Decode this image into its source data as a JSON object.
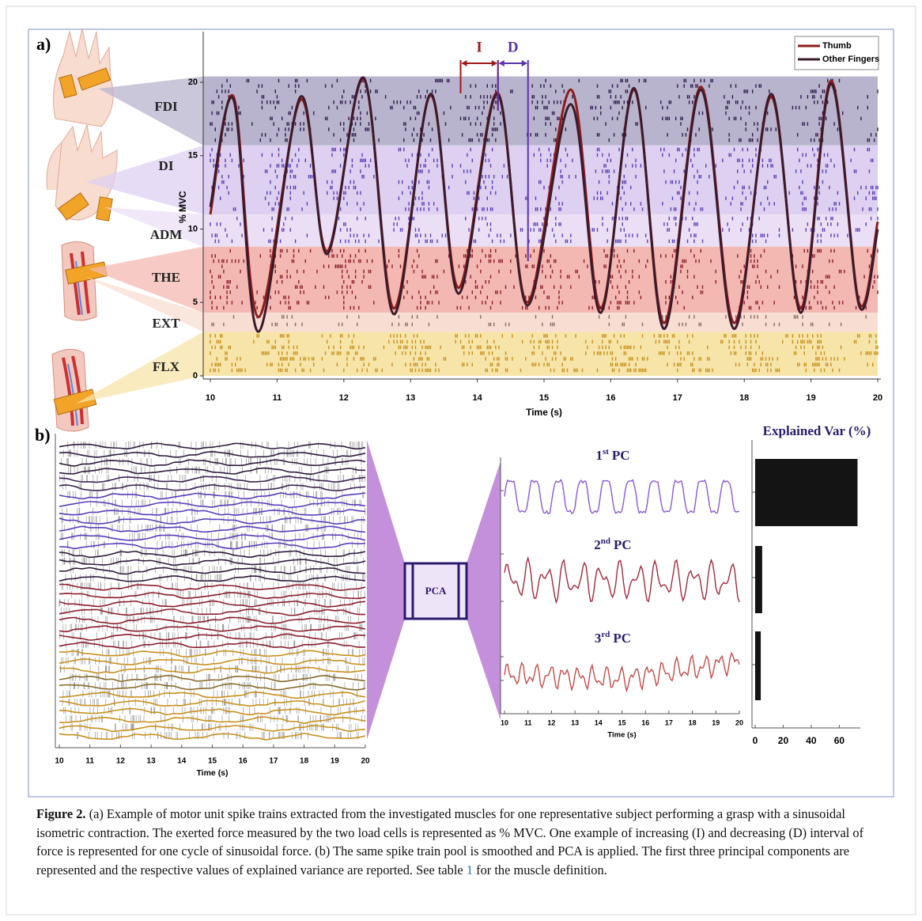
{
  "chart_data": [
    {
      "type": "line",
      "panel": "a)",
      "ylabel": "% MVC",
      "xlabel": "Time (s)",
      "xlim": [
        10,
        20
      ],
      "xticks": [
        10,
        11,
        12,
        13,
        14,
        15,
        16,
        17,
        18,
        19,
        20
      ],
      "ylim": [
        0,
        23.45
      ],
      "yticks": [
        0,
        5,
        10,
        15,
        20
      ],
      "bands": [
        {
          "name": "FDI",
          "color": "#b9b4cd",
          "range": [
            15.7,
            20.4
          ]
        },
        {
          "name": "DI",
          "color": "#ddd0f1",
          "range": [
            11,
            15.7
          ]
        },
        {
          "name": "ADM",
          "color": "#ebdff5",
          "range": [
            8.8,
            11
          ]
        },
        {
          "name": "THE",
          "color": "#f4b8b2",
          "range": [
            4.3,
            8.8
          ]
        },
        {
          "name": "EXT",
          "color": "#f8ddd2",
          "range": [
            3,
            4.3
          ]
        },
        {
          "name": "FLX",
          "color": "#f7e4a8",
          "range": [
            0,
            3
          ]
        }
      ],
      "annotations": [
        {
          "text": "I",
          "color": "#a01818",
          "range": [
            13.75,
            14.31
          ]
        },
        {
          "text": "D",
          "color": "#5a34a8",
          "range": [
            14.31,
            14.76
          ]
        }
      ],
      "x": [
        10,
        10.35,
        10.72,
        11.35,
        11.75,
        12.3,
        12.75,
        13.3,
        13.72,
        14.3,
        14.75,
        15.4,
        15.85,
        16.35,
        16.8,
        17.35,
        17.85,
        18.4,
        18.85,
        19.3,
        19.72,
        20
      ],
      "series": [
        {
          "name": "Thumb",
          "color": "#8e1c1c",
          "values": [
            11,
            19,
            4,
            18.8,
            8.5,
            20.2,
            4.6,
            19.1,
            6,
            19.3,
            5,
            19.5,
            4.6,
            19.5,
            3.6,
            19.7,
            3.6,
            19,
            4.6,
            20.1,
            5,
            10.5
          ]
        },
        {
          "name": "Other Fingers",
          "color": "#3b1b2b",
          "values": [
            11.5,
            18.8,
            3,
            19,
            8.3,
            20.3,
            4.2,
            19.2,
            5.6,
            19.2,
            4.8,
            18.5,
            4.3,
            19.6,
            3.2,
            19.5,
            3.2,
            19.2,
            4.3,
            19.9,
            4.8,
            10
          ]
        }
      ]
    },
    {
      "type": "raster",
      "panel": "b)",
      "xlabel": "Time (s)",
      "xlim": [
        10,
        20
      ],
      "xticks": [
        10,
        11,
        12,
        13,
        14,
        15,
        16,
        17,
        18,
        19,
        20
      ]
    },
    {
      "type": "line",
      "center": "PCA",
      "xlabel": "Time (s)",
      "xlim": [
        10,
        20
      ],
      "xticks": [
        10,
        11,
        12,
        13,
        14,
        15,
        16,
        17,
        18,
        19,
        20
      ],
      "components": [
        {
          "num": "1",
          "ordinal": "st",
          "name": "PC",
          "color": "#8b5ad6"
        },
        {
          "num": "2",
          "ordinal": "nd",
          "name": "PC",
          "color": "#a22a3c"
        },
        {
          "num": "3",
          "ordinal": "rd",
          "name": "PC",
          "color": "#c44b4b"
        }
      ]
    },
    {
      "type": "bar",
      "orientation": "horizontal",
      "title": "Explained Var (%)",
      "categories": [
        null,
        null,
        null
      ],
      "values": [
        73,
        5,
        4
      ],
      "color": "#141414",
      "xlim": [
        0,
        75
      ],
      "xticks": [
        0,
        20,
        40,
        60
      ]
    }
  ],
  "caption": {
    "label": "Figure 2.",
    "text_before": " (a) Example of motor unit spike trains extracted from the investigated muscles for one representative subject performing a grasp with a sinusoidal isometric contraction. The exerted force measured by the two load cells is represented as % MVC. One example of increasing (I) and decreasing (D) interval of force is represented for one cycle of sinusoidal force. (b) The same spike train pool is smoothed and PCA is applied. The first three principal components are represented and the respective values of explained variance are reported. See table ",
    "link": "1",
    "text_after": " for the muscle definition."
  }
}
